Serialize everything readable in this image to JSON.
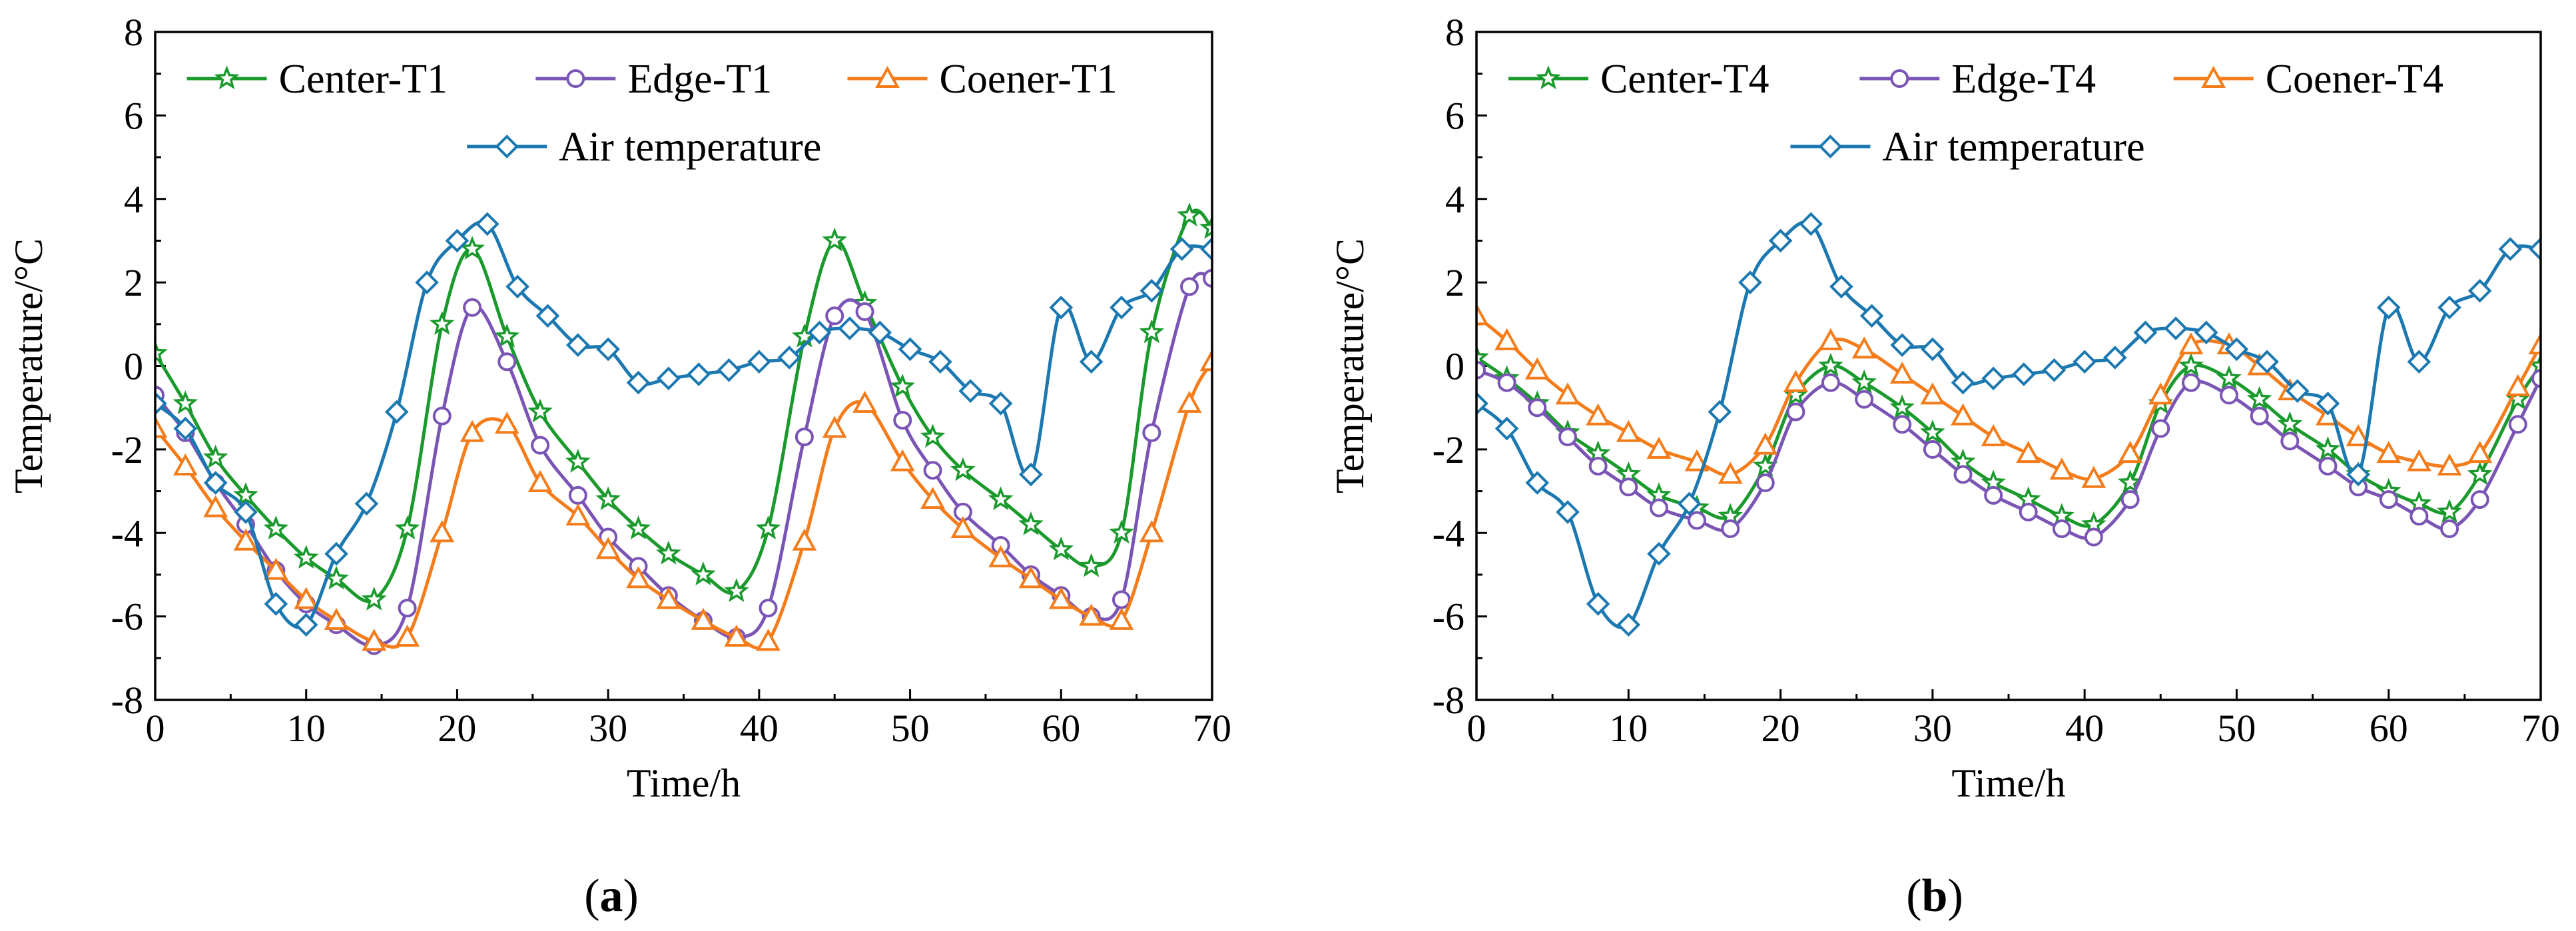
{
  "figure": {
    "captions": [
      {
        "open": "(",
        "letter": "a",
        "close": ")"
      },
      {
        "open": "(",
        "letter": "b",
        "close": ")"
      }
    ]
  },
  "colors": {
    "center": "#1a9a2c",
    "edge": "#7b55b5",
    "corner": "#f47c1a",
    "air": "#1b78b1"
  },
  "chart_data": [
    {
      "type": "line",
      "panel": "a",
      "xlabel": "Time/h",
      "ylabel": "Temperature/°C",
      "xlim": [
        0,
        70
      ],
      "ylim": [
        -8,
        8
      ],
      "xticks": [
        0,
        10,
        20,
        30,
        40,
        50,
        60,
        70
      ],
      "yticks": [
        -8,
        -6,
        -4,
        -2,
        0,
        2,
        4,
        6,
        8
      ],
      "grid": false,
      "legend_position": "top",
      "series": [
        {
          "name": "Center-T1",
          "key": "center",
          "marker": "star",
          "x": [
            0,
            2,
            4,
            6,
            8,
            10,
            12,
            14.5,
            16.7,
            19,
            21,
            23.3,
            25.5,
            28,
            30,
            32,
            34,
            36.3,
            38.5,
            40.6,
            43,
            45,
            47,
            49.5,
            51.5,
            53.5,
            56,
            58,
            60,
            62,
            64,
            66,
            68.5,
            70
          ],
          "y": [
            0.3,
            -0.9,
            -2.2,
            -3.1,
            -3.9,
            -4.6,
            -5.1,
            -5.6,
            -3.9,
            1.0,
            2.8,
            0.7,
            -1.1,
            -2.3,
            -3.2,
            -3.9,
            -4.5,
            -5.0,
            -5.4,
            -3.9,
            0.7,
            3.0,
            1.5,
            -0.5,
            -1.7,
            -2.5,
            -3.2,
            -3.8,
            -4.4,
            -4.8,
            -4.0,
            0.8,
            3.6,
            3.3
          ]
        },
        {
          "name": "Edge-T1",
          "key": "edge",
          "marker": "circle",
          "x": [
            0,
            2,
            4,
            6,
            8,
            10,
            12,
            14.5,
            16.7,
            19,
            21,
            23.3,
            25.5,
            28,
            30,
            32,
            34,
            36.3,
            38.5,
            40.6,
            43,
            45,
            47,
            49.5,
            51.5,
            53.5,
            56,
            58,
            60,
            62,
            64,
            66,
            68.5,
            70
          ],
          "y": [
            -0.7,
            -1.6,
            -2.8,
            -3.8,
            -4.9,
            -5.7,
            -6.2,
            -6.7,
            -5.8,
            -1.2,
            1.4,
            0.1,
            -1.9,
            -3.1,
            -4.1,
            -4.8,
            -5.5,
            -6.1,
            -6.5,
            -5.8,
            -1.7,
            1.2,
            1.3,
            -1.3,
            -2.5,
            -3.5,
            -4.3,
            -5.0,
            -5.5,
            -6.0,
            -5.6,
            -1.6,
            1.9,
            2.1
          ]
        },
        {
          "name": "Coener-T1",
          "key": "corner",
          "marker": "triangle",
          "x": [
            0,
            2,
            4,
            6,
            8,
            10,
            12,
            14.5,
            16.7,
            19,
            21,
            23.3,
            25.5,
            28,
            30,
            32,
            34,
            36.3,
            38.5,
            40.6,
            43,
            45,
            47,
            49.5,
            51.5,
            53.5,
            56,
            58,
            60,
            62,
            64,
            66,
            68.5,
            70
          ],
          "y": [
            -1.5,
            -2.4,
            -3.4,
            -4.2,
            -4.9,
            -5.6,
            -6.1,
            -6.6,
            -6.5,
            -4.0,
            -1.6,
            -1.4,
            -2.8,
            -3.6,
            -4.4,
            -5.1,
            -5.6,
            -6.1,
            -6.5,
            -6.6,
            -4.2,
            -1.5,
            -0.9,
            -2.3,
            -3.2,
            -3.9,
            -4.6,
            -5.1,
            -5.6,
            -6.0,
            -6.1,
            -4.0,
            -0.9,
            0.1
          ]
        },
        {
          "name": "Air temperature",
          "key": "air",
          "marker": "diamond",
          "x": [
            0,
            2,
            4,
            6,
            8,
            10,
            12,
            14,
            16,
            18,
            20,
            22,
            24,
            26,
            28,
            30,
            32,
            34,
            36,
            38,
            40,
            42,
            44,
            46,
            48,
            50,
            52,
            54,
            56,
            58,
            60,
            62,
            64,
            66,
            68,
            70
          ],
          "y": [
            -0.9,
            -1.5,
            -2.8,
            -3.5,
            -5.7,
            -6.2,
            -4.5,
            -3.3,
            -1.1,
            2.0,
            3.0,
            3.4,
            1.9,
            1.2,
            0.5,
            0.4,
            -0.4,
            -0.3,
            -0.2,
            -0.1,
            0.1,
            0.2,
            0.8,
            0.9,
            0.8,
            0.4,
            0.1,
            -0.6,
            -0.9,
            -2.6,
            1.4,
            0.1,
            1.4,
            1.8,
            2.8,
            2.8
          ]
        }
      ]
    },
    {
      "type": "line",
      "panel": "b",
      "xlabel": "Time/h",
      "ylabel": "Temperature/°C",
      "xlim": [
        0,
        70
      ],
      "ylim": [
        -8,
        8
      ],
      "xticks": [
        0,
        10,
        20,
        30,
        40,
        50,
        60,
        70
      ],
      "yticks": [
        -8,
        -6,
        -4,
        -2,
        0,
        2,
        4,
        6,
        8
      ],
      "grid": false,
      "legend_position": "top",
      "series": [
        {
          "name": "Center-T4",
          "key": "center",
          "marker": "star",
          "x": [
            0,
            2,
            4,
            6,
            8,
            10,
            12,
            14.5,
            16.7,
            19,
            21,
            23.3,
            25.5,
            28,
            30,
            32,
            34,
            36.3,
            38.5,
            40.6,
            43,
            45,
            47,
            49.5,
            51.5,
            53.5,
            56,
            58,
            60,
            62,
            64,
            66,
            68.5,
            70
          ],
          "y": [
            0.2,
            -0.3,
            -0.9,
            -1.6,
            -2.1,
            -2.6,
            -3.1,
            -3.4,
            -3.6,
            -2.4,
            -0.7,
            0.0,
            -0.4,
            -1.0,
            -1.6,
            -2.3,
            -2.8,
            -3.2,
            -3.6,
            -3.8,
            -2.8,
            -0.9,
            0.0,
            -0.3,
            -0.8,
            -1.4,
            -2.0,
            -2.6,
            -3.0,
            -3.3,
            -3.5,
            -2.6,
            -0.8,
            0.0
          ]
        },
        {
          "name": "Edge-T4",
          "key": "edge",
          "marker": "circle",
          "x": [
            0,
            2,
            4,
            6,
            8,
            10,
            12,
            14.5,
            16.7,
            19,
            21,
            23.3,
            25.5,
            28,
            30,
            32,
            34,
            36.3,
            38.5,
            40.6,
            43,
            45,
            47,
            49.5,
            51.5,
            53.5,
            56,
            58,
            60,
            62,
            64,
            66,
            68.5,
            70
          ],
          "y": [
            -0.1,
            -0.4,
            -1.0,
            -1.7,
            -2.4,
            -2.9,
            -3.4,
            -3.7,
            -3.9,
            -2.8,
            -1.1,
            -0.4,
            -0.8,
            -1.4,
            -2.0,
            -2.6,
            -3.1,
            -3.5,
            -3.9,
            -4.1,
            -3.2,
            -1.5,
            -0.4,
            -0.7,
            -1.2,
            -1.8,
            -2.4,
            -2.9,
            -3.2,
            -3.6,
            -3.9,
            -3.2,
            -1.4,
            -0.3
          ]
        },
        {
          "name": "Coener-T4",
          "key": "corner",
          "marker": "triangle",
          "x": [
            0,
            2,
            4,
            6,
            8,
            10,
            12,
            14.5,
            16.7,
            19,
            21,
            23.3,
            25.5,
            28,
            30,
            32,
            34,
            36.3,
            38.5,
            40.6,
            43,
            45,
            47,
            49.5,
            51.5,
            53.5,
            56,
            58,
            60,
            62,
            64,
            66,
            68.5,
            70
          ],
          "y": [
            1.2,
            0.6,
            -0.1,
            -0.7,
            -1.2,
            -1.6,
            -2.0,
            -2.3,
            -2.6,
            -1.9,
            -0.4,
            0.6,
            0.4,
            -0.2,
            -0.7,
            -1.2,
            -1.7,
            -2.1,
            -2.5,
            -2.7,
            -2.1,
            -0.7,
            0.5,
            0.5,
            0.0,
            -0.6,
            -1.2,
            -1.7,
            -2.1,
            -2.3,
            -2.4,
            -2.1,
            -0.5,
            0.5
          ]
        },
        {
          "name": "Air temperature",
          "key": "air",
          "marker": "diamond",
          "x": [
            0,
            2,
            4,
            6,
            8,
            10,
            12,
            14,
            16,
            18,
            20,
            22,
            24,
            26,
            28,
            30,
            32,
            34,
            36,
            38,
            40,
            42,
            44,
            46,
            48,
            50,
            52,
            54,
            56,
            58,
            60,
            62,
            64,
            66,
            68,
            70
          ],
          "y": [
            -0.9,
            -1.5,
            -2.8,
            -3.5,
            -5.7,
            -6.2,
            -4.5,
            -3.3,
            -1.1,
            2.0,
            3.0,
            3.4,
            1.9,
            1.2,
            0.5,
            0.4,
            -0.4,
            -0.3,
            -0.2,
            -0.1,
            0.1,
            0.2,
            0.8,
            0.9,
            0.8,
            0.4,
            0.1,
            -0.6,
            -0.9,
            -2.6,
            1.4,
            0.1,
            1.4,
            1.8,
            2.8,
            2.8
          ]
        }
      ]
    }
  ]
}
